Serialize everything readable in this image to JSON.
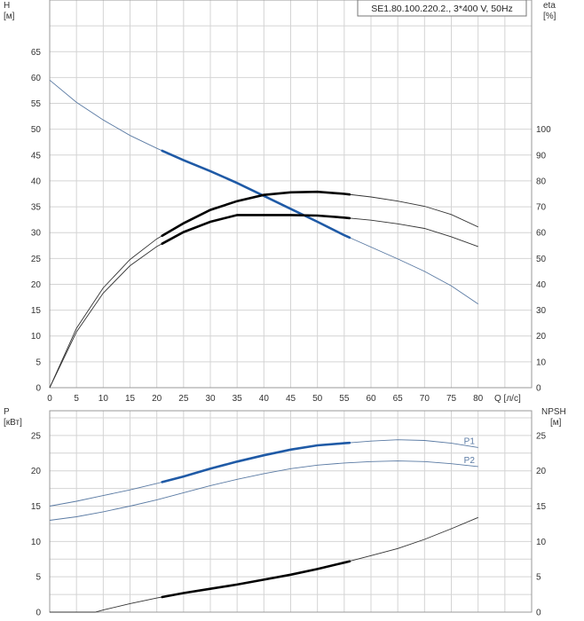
{
  "chart_data": [
    {
      "type": "line",
      "title": "SE1.80.100.220.2., 3*400 V, 50Hz",
      "xlabel": "Q [л/с]",
      "x_ticks": [
        0,
        5,
        10,
        15,
        20,
        25,
        30,
        35,
        40,
        45,
        50,
        55,
        60,
        65,
        70,
        75,
        80
      ],
      "x_tick_labels": [
        "0",
        "5",
        "10",
        "15",
        "20",
        "25",
        "30",
        "35",
        "40",
        "45",
        "50",
        "55",
        "60",
        "65",
        "70",
        "75",
        "80"
      ],
      "xlim": [
        0,
        90
      ],
      "ylabel_left": [
        "H",
        "[м]"
      ],
      "ylim_left": [
        0,
        75
      ],
      "y_ticks_left": [
        0,
        5,
        10,
        15,
        20,
        25,
        30,
        35,
        40,
        45,
        50,
        55,
        60,
        65
      ],
      "ylabel_right": [
        "eta",
        "[%]"
      ],
      "ylim_right": [
        0,
        150
      ],
      "y_ticks_right": [
        0,
        10,
        20,
        30,
        40,
        50,
        60,
        70,
        80,
        90,
        100
      ],
      "grid": true,
      "series": [
        {
          "axis": "left",
          "color": "#5a7aa3",
          "x": [
            0,
            5,
            10,
            15,
            20,
            25,
            30,
            35,
            40,
            45,
            50,
            55,
            60,
            65,
            70,
            75,
            80
          ],
          "y": [
            59.5,
            55.2,
            51.8,
            48.8,
            46.3,
            44,
            41.9,
            39.6,
            37.1,
            34.6,
            32.1,
            29.5,
            27.2,
            24.9,
            22.5,
            19.7,
            16.2
          ],
          "highlight": {
            "x_from": 21,
            "x_to": 56,
            "color": "#1f5aa6"
          }
        },
        {
          "axis": "left",
          "color": "#333333",
          "x": [
            0,
            5,
            10,
            15,
            20,
            25,
            30,
            35,
            40,
            45,
            50,
            55,
            60,
            65,
            70,
            75,
            80
          ],
          "y": [
            0,
            10.8,
            18.3,
            23.6,
            27.3,
            30.1,
            32.1,
            33.4,
            33.4,
            33.4,
            33.3,
            32.9,
            32.4,
            31.7,
            30.8,
            29.2,
            27.3
          ],
          "highlight": {
            "x_from": 21,
            "x_to": 56,
            "color": "#000000"
          }
        },
        {
          "axis": "left",
          "color": "#333333",
          "x": [
            0,
            5,
            10,
            15,
            20,
            25,
            30,
            35,
            40,
            45,
            50,
            55,
            60,
            65,
            70,
            75,
            80
          ],
          "y": [
            0,
            11.5,
            19.3,
            24.8,
            28.8,
            31.8,
            34.4,
            36.1,
            37.3,
            37.8,
            37.9,
            37.5,
            36.9,
            36.1,
            35.1,
            33.5,
            31.1
          ],
          "highlight": {
            "x_from": 21,
            "x_to": 56,
            "color": "#000000"
          }
        }
      ]
    },
    {
      "type": "line",
      "xlim": [
        0,
        90
      ],
      "ylabel_left": [
        "P",
        "[кВт]"
      ],
      "ylim_left": [
        0,
        28.5
      ],
      "y_ticks_left": [
        0,
        5,
        10,
        15,
        20,
        25
      ],
      "ylabel_right": [
        "NPSH",
        "[м]"
      ],
      "ylim_right": [
        0,
        28.5
      ],
      "y_ticks_right": [
        0,
        5,
        10,
        15,
        20,
        25
      ],
      "grid": true,
      "series": [
        {
          "name": "P1",
          "axis": "left",
          "color": "#5a7aa3",
          "x": [
            0,
            5,
            10,
            15,
            20,
            25,
            30,
            35,
            40,
            45,
            50,
            55,
            60,
            65,
            70,
            75,
            80
          ],
          "y": [
            15,
            15.7,
            16.5,
            17.3,
            18.2,
            19.2,
            20.3,
            21.3,
            22.2,
            23,
            23.6,
            23.9,
            24.2,
            24.4,
            24.3,
            23.9,
            23.3
          ],
          "highlight": {
            "x_from": 21,
            "x_to": 56,
            "color": "#1f5aa6"
          }
        },
        {
          "name": "P2",
          "axis": "left",
          "color": "#5a7aa3",
          "x": [
            0,
            5,
            10,
            15,
            20,
            25,
            30,
            35,
            40,
            45,
            50,
            55,
            60,
            65,
            70,
            75,
            80
          ],
          "y": [
            13,
            13.5,
            14.2,
            15,
            15.9,
            16.9,
            17.9,
            18.8,
            19.6,
            20.3,
            20.8,
            21.1,
            21.3,
            21.4,
            21.3,
            21,
            20.6
          ]
        },
        {
          "axis": "right",
          "color": "#333333",
          "x": [
            0,
            5,
            8.5,
            10,
            15,
            20,
            25,
            30,
            35,
            40,
            45,
            50,
            55,
            60,
            65,
            70,
            75,
            80
          ],
          "y": [
            0,
            0,
            0,
            0.3,
            1.2,
            2,
            2.7,
            3.3,
            3.9,
            4.6,
            5.3,
            6.1,
            7,
            8,
            9,
            10.3,
            11.8,
            13.4
          ],
          "highlight": {
            "x_from": 21,
            "x_to": 56,
            "color": "#000000"
          }
        }
      ]
    }
  ]
}
